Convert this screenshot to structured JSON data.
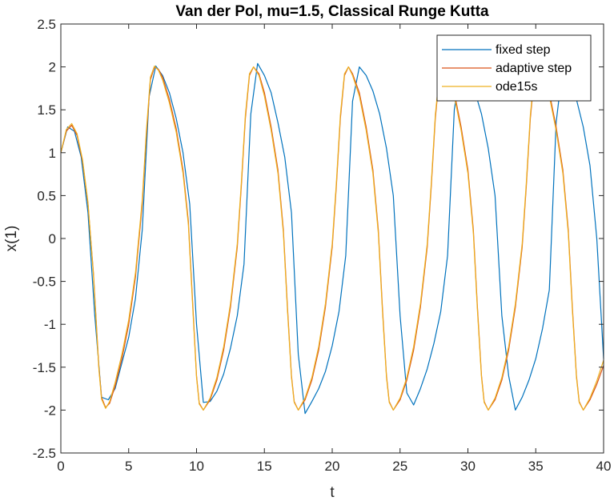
{
  "chart_data": {
    "type": "line",
    "title": "Van der Pol, mu=1.5, Classical Runge Kutta",
    "xlabel": "t",
    "ylabel": "x(1)",
    "xlim": [
      0,
      40
    ],
    "ylim": [
      -2.5,
      2.5
    ],
    "xticks": [
      0,
      5,
      10,
      15,
      20,
      25,
      30,
      35,
      40
    ],
    "yticks": [
      -2.5,
      -2,
      -1.5,
      -1,
      -0.5,
      0,
      0.5,
      1,
      1.5,
      2,
      2.5
    ],
    "xtick_labels": [
      "0",
      "5",
      "10",
      "15",
      "20",
      "25",
      "30",
      "35",
      "40"
    ],
    "ytick_labels": [
      "-2.5",
      "-2",
      "-1.5",
      "-1",
      "-0.5",
      "0",
      "0.5",
      "1",
      "1.5",
      "2",
      "2.5"
    ],
    "grid": false,
    "legend_position": "top-right",
    "series": [
      {
        "name": "fixed step",
        "color": "#0072BD",
        "x": [
          0,
          0.5,
          1.0,
          1.5,
          2.0,
          2.5,
          3.0,
          3.5,
          4.0,
          4.5,
          5.0,
          5.5,
          6.0,
          6.5,
          7.0,
          7.5,
          8.0,
          8.5,
          9.0,
          9.5,
          10.0,
          10.5,
          11.0,
          11.5,
          12.0,
          12.5,
          13.0,
          13.5,
          14.0,
          14.5,
          15.0,
          15.5,
          16.0,
          16.5,
          17.0,
          17.5,
          18.0,
          18.5,
          19.0,
          19.5,
          20.0,
          20.5,
          21.0,
          21.5,
          22.0,
          22.5,
          23.0,
          23.5,
          24.0,
          24.5,
          25.0,
          25.5,
          26.0,
          26.5,
          27.0,
          27.5,
          28.0,
          28.5,
          29.0,
          29.5,
          30.0,
          30.5,
          31.0,
          31.5,
          32.0,
          32.5,
          33.0,
          33.5,
          34.0,
          34.5,
          35.0,
          35.5,
          36.0,
          36.5,
          37.0,
          37.5,
          38.0,
          38.5,
          39.0,
          39.5,
          40.0
        ],
        "y": [
          1.0,
          1.3,
          1.25,
          0.95,
          0.3,
          -0.9,
          -1.85,
          -1.88,
          -1.75,
          -1.45,
          -1.15,
          -0.7,
          0.1,
          1.65,
          2.01,
          1.9,
          1.7,
          1.4,
          1.0,
          0.4,
          -1.0,
          -1.91,
          -1.9,
          -1.78,
          -1.58,
          -1.28,
          -0.9,
          -0.3,
          1.45,
          2.04,
          1.9,
          1.7,
          1.35,
          0.95,
          0.3,
          -1.35,
          -2.04,
          -1.9,
          -1.75,
          -1.55,
          -1.25,
          -0.85,
          -0.2,
          1.6,
          2.0,
          1.9,
          1.72,
          1.45,
          1.05,
          0.5,
          -0.9,
          -1.8,
          -1.94,
          -1.75,
          -1.52,
          -1.22,
          -0.85,
          -0.2,
          1.5,
          2.02,
          1.9,
          1.72,
          1.45,
          1.05,
          0.5,
          -0.9,
          -1.6,
          -2.0,
          -1.85,
          -1.65,
          -1.4,
          -1.05,
          -0.6,
          1.35,
          2.01,
          1.85,
          1.62,
          1.3,
          0.85,
          0.0,
          -1.4
        ]
      },
      {
        "name": "adaptive step",
        "color": "#D95319",
        "x": [
          0,
          0.4,
          0.8,
          1.2,
          1.6,
          2.0,
          2.4,
          2.8,
          3.0,
          3.3,
          3.6,
          4.0,
          4.5,
          5.0,
          5.5,
          6.0,
          6.3,
          6.6,
          6.9,
          7.2,
          7.5,
          8.0,
          8.5,
          9.0,
          9.4,
          9.7,
          10.0,
          10.2,
          10.5,
          11.0,
          11.5,
          12.0,
          12.5,
          13.0,
          13.3,
          13.6,
          13.9,
          14.2,
          14.6,
          15.0,
          15.5,
          16.0,
          16.4,
          16.7,
          17.0,
          17.2,
          17.5,
          18.0,
          18.5,
          19.0,
          19.5,
          20.0,
          20.3,
          20.6,
          20.9,
          21.2,
          21.5,
          22.0,
          22.5,
          23.0,
          23.4,
          23.7,
          24.0,
          24.2,
          24.5,
          25.0,
          25.5,
          26.0,
          26.5,
          27.0,
          27.3,
          27.6,
          27.9,
          28.2,
          28.5,
          29.0,
          29.5,
          30.0,
          30.4,
          30.7,
          31.0,
          31.2,
          31.5,
          32.0,
          32.5,
          33.0,
          33.5,
          34.0,
          34.3,
          34.6,
          34.9,
          35.2,
          35.5,
          36.0,
          36.5,
          37.0,
          37.4,
          37.7,
          38.0,
          38.2,
          38.5,
          39.0,
          39.5,
          40.0
        ],
        "y": [
          1.0,
          1.25,
          1.32,
          1.2,
          0.9,
          0.4,
          -0.4,
          -1.5,
          -1.85,
          -1.97,
          -1.92,
          -1.72,
          -1.4,
          -1.0,
          -0.45,
          0.4,
          1.2,
          1.85,
          2.0,
          1.97,
          1.88,
          1.62,
          1.28,
          0.8,
          0.2,
          -0.7,
          -1.6,
          -1.92,
          -2.0,
          -1.88,
          -1.65,
          -1.3,
          -0.8,
          -0.1,
          0.6,
          1.4,
          1.9,
          2.0,
          1.92,
          1.7,
          1.3,
          0.8,
          0.1,
          -0.8,
          -1.6,
          -1.9,
          -2.0,
          -1.88,
          -1.65,
          -1.3,
          -0.8,
          -0.1,
          0.6,
          1.4,
          1.9,
          2.0,
          1.92,
          1.7,
          1.3,
          0.8,
          0.1,
          -0.8,
          -1.6,
          -1.9,
          -2.0,
          -1.88,
          -1.65,
          -1.3,
          -0.8,
          -0.1,
          0.6,
          1.4,
          1.9,
          2.0,
          1.92,
          1.7,
          1.3,
          0.8,
          0.1,
          -0.8,
          -1.6,
          -1.9,
          -2.0,
          -1.88,
          -1.65,
          -1.3,
          -0.8,
          -0.1,
          0.6,
          1.4,
          1.9,
          2.0,
          1.92,
          1.7,
          1.3,
          0.8,
          0.1,
          -0.8,
          -1.6,
          -1.9,
          -2.0,
          -1.88,
          -1.7,
          -1.48
        ]
      },
      {
        "name": "ode15s",
        "color": "#EDB120",
        "x": [
          0,
          0.4,
          0.8,
          1.2,
          1.6,
          2.0,
          2.4,
          2.8,
          3.0,
          3.3,
          3.6,
          4.0,
          4.5,
          5.0,
          5.5,
          6.0,
          6.3,
          6.6,
          6.9,
          7.2,
          7.5,
          8.0,
          8.5,
          9.0,
          9.4,
          9.7,
          10.0,
          10.2,
          10.5,
          11.0,
          11.5,
          12.0,
          12.5,
          13.0,
          13.3,
          13.6,
          13.9,
          14.2,
          14.6,
          15.0,
          15.5,
          16.0,
          16.4,
          16.7,
          17.0,
          17.2,
          17.5,
          18.0,
          18.5,
          19.0,
          19.5,
          20.0,
          20.3,
          20.6,
          20.9,
          21.2,
          21.5,
          22.0,
          22.5,
          23.0,
          23.4,
          23.7,
          24.0,
          24.2,
          24.5,
          25.0,
          25.5,
          26.0,
          26.5,
          27.0,
          27.3,
          27.6,
          27.9,
          28.2,
          28.5,
          29.0,
          29.5,
          30.0,
          30.4,
          30.7,
          31.0,
          31.2,
          31.5,
          32.0,
          32.5,
          33.0,
          33.5,
          34.0,
          34.3,
          34.6,
          34.9,
          35.2,
          35.5,
          36.0,
          36.5,
          37.0,
          37.4,
          37.7,
          38.0,
          38.2,
          38.5,
          39.0,
          39.5,
          40.0
        ],
        "y": [
          1.0,
          1.27,
          1.34,
          1.22,
          0.92,
          0.42,
          -0.42,
          -1.52,
          -1.87,
          -1.98,
          -1.9,
          -1.68,
          -1.35,
          -0.95,
          -0.4,
          0.45,
          1.25,
          1.88,
          2.01,
          1.96,
          1.85,
          1.58,
          1.24,
          0.76,
          0.16,
          -0.74,
          -1.62,
          -1.93,
          -2.0,
          -1.86,
          -1.62,
          -1.26,
          -0.76,
          -0.06,
          0.64,
          1.44,
          1.92,
          2.0,
          1.9,
          1.66,
          1.26,
          0.76,
          0.06,
          -0.84,
          -1.62,
          -1.91,
          -2.0,
          -1.86,
          -1.62,
          -1.26,
          -0.76,
          -0.06,
          0.64,
          1.44,
          1.92,
          2.0,
          1.9,
          1.66,
          1.26,
          0.76,
          0.06,
          -0.84,
          -1.62,
          -1.91,
          -2.0,
          -1.86,
          -1.62,
          -1.26,
          -0.76,
          -0.06,
          0.64,
          1.44,
          1.92,
          2.0,
          1.9,
          1.66,
          1.26,
          0.76,
          0.06,
          -0.84,
          -1.62,
          -1.91,
          -2.0,
          -1.86,
          -1.62,
          -1.26,
          -0.76,
          -0.06,
          0.64,
          1.44,
          1.92,
          2.0,
          1.9,
          1.66,
          1.26,
          0.76,
          0.06,
          -0.84,
          -1.62,
          -1.91,
          -2.0,
          -1.86,
          -1.66,
          -1.42
        ]
      }
    ]
  }
}
